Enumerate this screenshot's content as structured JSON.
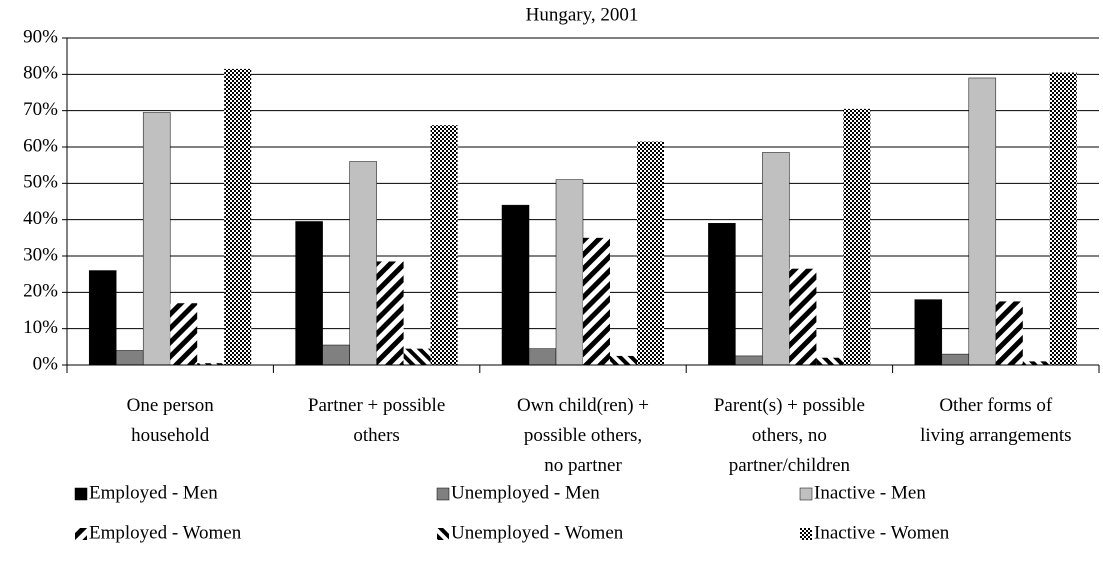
{
  "chart_data": {
    "type": "bar",
    "title": "Hungary, 2001",
    "categories": [
      "One person\nhousehold",
      "Partner + possible\nothers",
      "Own child(ren) +\npossible others,\nno partner",
      "Parent(s) + possible\nothers, no\npartner/children",
      "Other forms of\nliving arrangements"
    ],
    "series": [
      {
        "name": "Employed - Men",
        "color": "#000000",
        "values": [
          26,
          39.5,
          44,
          39,
          18
        ]
      },
      {
        "name": "Unemployed - Men",
        "color": "#808080",
        "values": [
          4,
          5.5,
          4.5,
          2.5,
          3
        ]
      },
      {
        "name": "Inactive - Men",
        "color": "#c0c0c0",
        "values": [
          69.5,
          56,
          51,
          58.5,
          79
        ]
      },
      {
        "name": "Employed - Women",
        "color": "#000000",
        "pattern": "stripe-down",
        "values": [
          17,
          28.5,
          35,
          26.5,
          17.5
        ]
      },
      {
        "name": "Unemployed - Women",
        "color": "#000000",
        "pattern": "stripe-up",
        "values": [
          0.5,
          4.5,
          2.5,
          2,
          1
        ]
      },
      {
        "name": "Inactive - Women",
        "color": "#000000",
        "pattern": "checker",
        "values": [
          81.5,
          66,
          61.5,
          70.5,
          80.5
        ]
      }
    ],
    "ylim": [
      0,
      90
    ],
    "yticks": [
      {
        "value": 0,
        "label": "0%"
      },
      {
        "value": 10,
        "label": "10%"
      },
      {
        "value": 20,
        "label": "20%"
      },
      {
        "value": 30,
        "label": "30%"
      },
      {
        "value": 40,
        "label": "40%"
      },
      {
        "value": 50,
        "label": "50%"
      },
      {
        "value": 60,
        "label": "60%"
      },
      {
        "value": 70,
        "label": "70%"
      },
      {
        "value": 80,
        "label": "80%"
      },
      {
        "value": 90,
        "label": "90%"
      }
    ],
    "grid": true
  }
}
